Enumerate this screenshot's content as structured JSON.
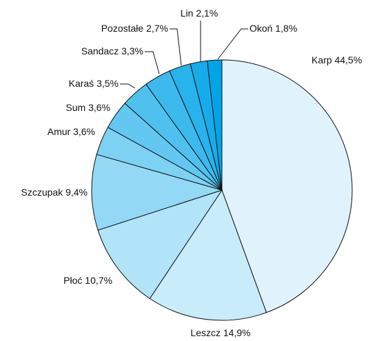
{
  "chart_data": {
    "type": "pie",
    "categories": [
      "Karp",
      "Leszcz",
      "Płoć",
      "Szczupak",
      "Amur",
      "Sum",
      "Karaś",
      "Sandacz",
      "Pozostałe",
      "Lin",
      "Okoń"
    ],
    "values": [
      44.5,
      14.9,
      10.7,
      9.4,
      3.6,
      3.6,
      3.5,
      3.3,
      2.7,
      2.1,
      1.8
    ],
    "value_labels": [
      "44,5%",
      "14,9%",
      "10,7%",
      "9,4%",
      "3,6%",
      "3,6%",
      "3,5%",
      "3,3%",
      "2,7%",
      "2,1%",
      "1,8%"
    ],
    "colors": [
      "#e0f3fc",
      "#c9ecfa",
      "#b1e4f8",
      "#93d9f5",
      "#7dd1f3",
      "#63c8f1",
      "#4fc1ef",
      "#3cbaed",
      "#28b3ec",
      "#16aceb",
      "#00a5e8"
    ]
  }
}
